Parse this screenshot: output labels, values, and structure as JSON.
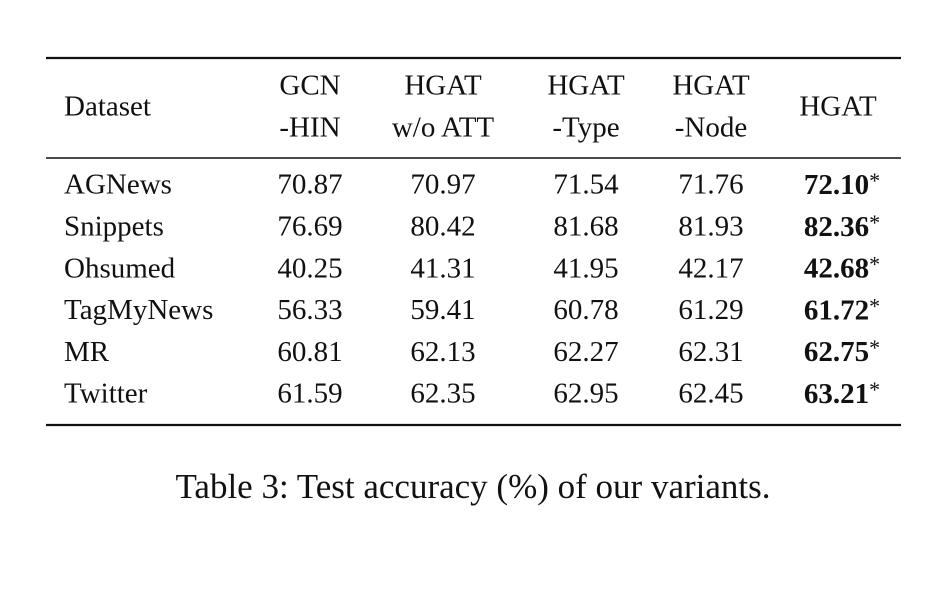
{
  "table": {
    "header": [
      [
        "Dataset"
      ],
      [
        "GCN",
        "-HIN"
      ],
      [
        "HGAT",
        "w/o ATT"
      ],
      [
        "HGAT",
        "-Type"
      ],
      [
        "HGAT",
        "-Node"
      ],
      [
        "HGAT"
      ]
    ],
    "rows": [
      {
        "dataset": "AGNews",
        "values": [
          "70.87",
          "70.97",
          "71.54",
          "71.76",
          "72.10"
        ],
        "mark": "*"
      },
      {
        "dataset": "Snippets",
        "values": [
          "76.69",
          "80.42",
          "81.68",
          "81.93",
          "82.36"
        ],
        "mark": "*"
      },
      {
        "dataset": "Ohsumed",
        "values": [
          "40.25",
          "41.31",
          "41.95",
          "42.17",
          "42.68"
        ],
        "mark": "*"
      },
      {
        "dataset": "TagMyNews",
        "values": [
          "56.33",
          "59.41",
          "60.78",
          "61.29",
          "61.72"
        ],
        "mark": "*"
      },
      {
        "dataset": "MR",
        "values": [
          "60.81",
          "62.13",
          "62.27",
          "62.31",
          "62.75"
        ],
        "mark": "*"
      },
      {
        "dataset": "Twitter",
        "values": [
          "61.59",
          "62.35",
          "62.95",
          "62.45",
          "63.21"
        ],
        "mark": "*"
      }
    ]
  },
  "caption": "Table 3: Test accuracy (%) of our variants."
}
